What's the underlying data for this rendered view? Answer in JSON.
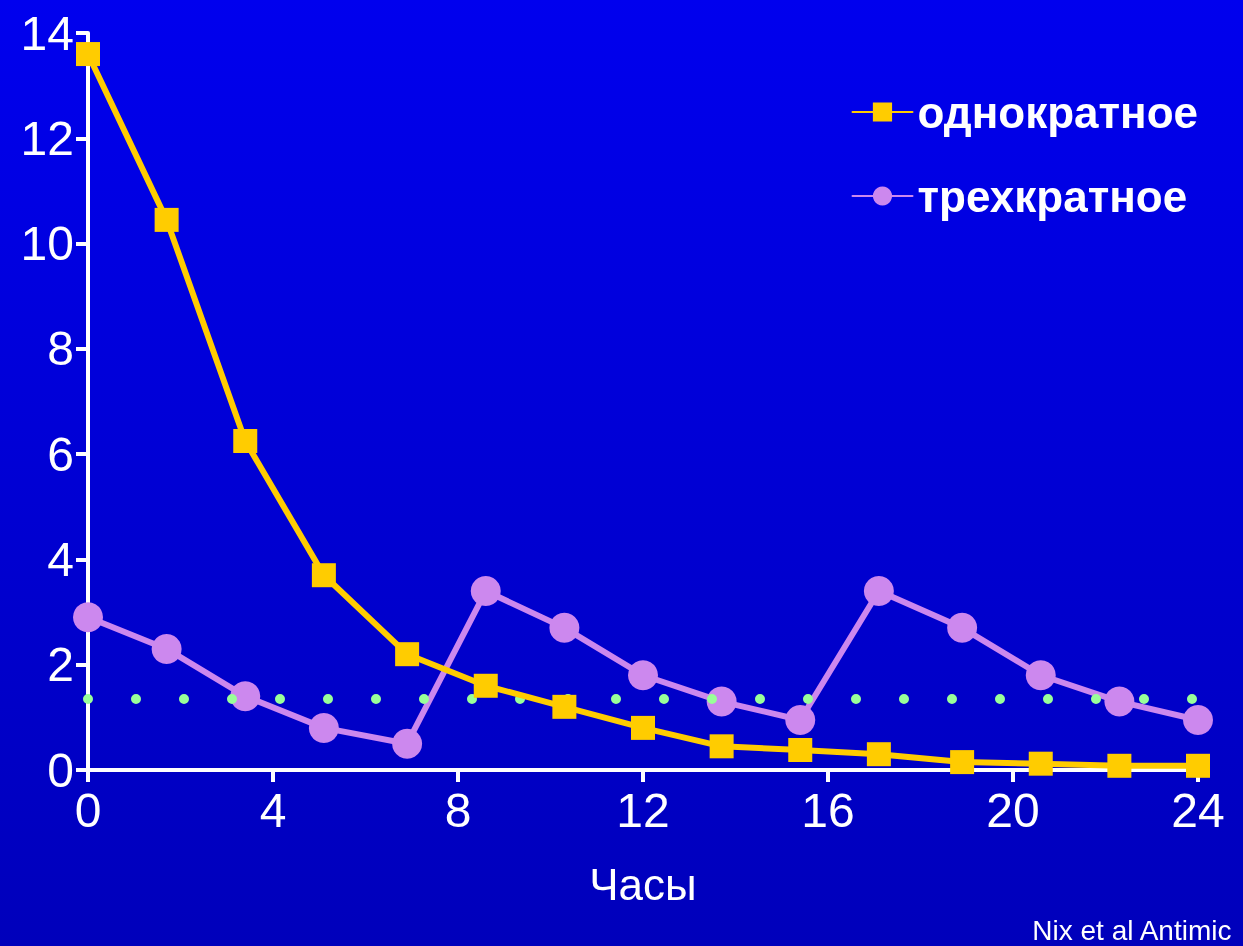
{
  "chart_data": {
    "type": "line",
    "xlabel": "Часы",
    "annotations": [
      "Nix et al Antimic"
    ],
    "x": [
      0,
      1.7,
      3.4,
      5.1,
      6.9,
      8.6,
      10.3,
      12,
      13.7,
      15.4,
      17.1,
      18.9,
      20.6,
      22.3,
      24
    ],
    "series": [
      {
        "name": "однократное",
        "color": "#ffcc00",
        "marker": "square",
        "values": [
          13.6,
          10.45,
          6.25,
          3.7,
          2.2,
          1.6,
          1.2,
          0.8,
          0.45,
          0.38,
          0.3,
          0.15,
          0.12,
          0.08,
          0.08
        ]
      },
      {
        "name": "трехкратное",
        "color": "#cc88ee",
        "marker": "circle",
        "values": [
          2.9,
          2.3,
          1.4,
          0.8,
          0.5,
          3.4,
          2.7,
          1.8,
          1.3,
          0.95,
          3.4,
          2.7,
          1.8,
          1.3,
          0.95
        ]
      }
    ],
    "xlim": [
      0,
      24
    ],
    "xticks": [
      0,
      4,
      8,
      12,
      16,
      20,
      24
    ],
    "ylim": [
      0,
      14
    ],
    "yticks": [
      0,
      2,
      4,
      6,
      8,
      10,
      12,
      14
    ],
    "ref_lines": [
      {
        "axis": "y",
        "value": 1.35,
        "color": "#99ff99",
        "line_style": "dotted"
      }
    ],
    "grid": false,
    "legend": "top right",
    "line_style": "solid"
  }
}
